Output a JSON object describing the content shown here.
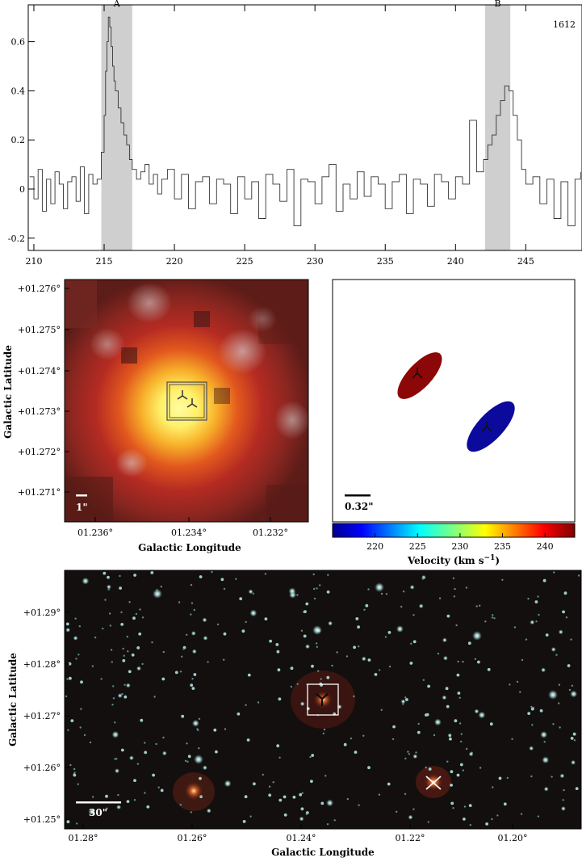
{
  "spectrum": {
    "panel_label": "1612",
    "regions": [
      {
        "label": "A",
        "x_start": 214.8,
        "x_end": 217.0
      },
      {
        "label": "B",
        "x_start": 242.1,
        "x_end": 243.9
      }
    ]
  },
  "chart_data": [
    {
      "type": "line",
      "title": "",
      "xlabel": "",
      "ylabel": "",
      "xlim": [
        209.6,
        249.0
      ],
      "ylim": [
        -0.25,
        0.75
      ],
      "x_ticks": [
        210,
        215,
        220,
        225,
        230,
        235,
        240,
        245
      ],
      "y_ticks": [
        -0.2,
        0,
        0.2,
        0.4,
        0.6
      ],
      "x_tick_labels": [
        "210",
        "215",
        "220",
        "225",
        "230",
        "235",
        "240",
        "245"
      ],
      "y_tick_labels": [
        "-0.2",
        "0",
        "0.2",
        "0.4",
        "0.6"
      ],
      "grid": false,
      "series": [
        {
          "x": [
            209.7,
            210.0,
            210.3,
            210.6,
            210.9,
            211.2,
            211.5,
            211.8,
            212.1,
            212.4,
            212.7,
            213.0,
            213.3,
            213.6,
            213.9,
            214.2,
            214.5,
            214.8,
            215.0,
            215.1,
            215.2,
            215.3,
            215.4,
            215.5,
            215.6,
            215.7,
            215.8,
            216.0,
            216.2,
            216.4,
            216.6,
            216.8,
            217.0,
            217.3,
            217.6,
            217.9,
            218.2,
            218.5,
            218.8,
            219.1,
            219.5,
            220.0,
            220.5,
            221.0,
            221.5,
            222.0,
            222.5,
            223.0,
            223.5,
            224.0,
            224.5,
            225.0,
            225.5,
            226.0,
            226.5,
            227.0,
            227.5,
            228.0,
            228.5,
            229.0,
            229.5,
            230.0,
            230.5,
            231.0,
            231.5,
            232.0,
            232.5,
            233.0,
            233.5,
            234.0,
            234.5,
            235.0,
            235.5,
            236.0,
            236.5,
            237.0,
            237.5,
            238.0,
            238.5,
            239.0,
            239.5,
            240.0,
            240.5,
            241.0,
            241.5,
            242.0,
            242.3,
            242.6,
            242.9,
            243.2,
            243.5,
            243.8,
            244.1,
            244.4,
            244.7,
            245.0,
            245.5,
            246.0,
            246.5,
            247.0,
            247.5,
            248.0,
            248.5,
            248.9
          ],
          "y": [
            0.05,
            -0.04,
            0.08,
            -0.09,
            0.04,
            -0.06,
            0.07,
            0.02,
            -0.08,
            0.03,
            0.05,
            -0.05,
            0.09,
            -0.1,
            0.06,
            0.02,
            0.04,
            0.15,
            0.3,
            0.48,
            0.6,
            0.7,
            0.66,
            0.58,
            0.5,
            0.44,
            0.4,
            0.33,
            0.27,
            0.22,
            0.18,
            0.12,
            0.08,
            0.04,
            0.07,
            0.1,
            0.02,
            0.06,
            -0.02,
            0.04,
            0.08,
            -0.04,
            0.06,
            -0.08,
            0.03,
            0.05,
            -0.06,
            0.04,
            0.02,
            -0.1,
            0.05,
            -0.04,
            0.03,
            -0.12,
            0.06,
            0.02,
            -0.05,
            0.08,
            -0.15,
            0.04,
            0.03,
            -0.06,
            0.05,
            0.1,
            -0.09,
            0.02,
            -0.04,
            0.07,
            -0.03,
            0.05,
            0.02,
            -0.08,
            0.03,
            0.06,
            -0.1,
            0.04,
            0.02,
            -0.07,
            0.06,
            0.03,
            -0.04,
            0.05,
            0.02,
            0.28,
            0.07,
            0.12,
            0.18,
            0.22,
            0.3,
            0.36,
            0.42,
            0.4,
            0.3,
            0.2,
            0.08,
            0.02,
            0.05,
            -0.06,
            0.04,
            -0.12,
            0.03,
            -0.15,
            0.04,
            0.07
          ]
        }
      ]
    },
    {
      "type": "scatter",
      "title": "",
      "xlabel": "Galactic Longitude",
      "ylabel": "Galactic Latitude",
      "x_ticks": [
        1.236,
        1.234,
        1.232
      ],
      "y_ticks": [
        1.276,
        1.275,
        1.274,
        1.273,
        1.272,
        1.271
      ],
      "x_tick_labels": [
        "01.236°",
        "01.234°",
        "01.232°"
      ],
      "y_tick_labels": [
        "+01.276°",
        "+01.275°",
        "+01.274°",
        "+01.273°",
        "+01.272°",
        "+01.271°"
      ],
      "scale_bar_label": "1\""
    },
    {
      "type": "scatter",
      "title": "",
      "xlabel": "Velocity (km s",
      "xlabel_sup": "−1",
      "xlabel_end": ")",
      "colorbar_range": [
        215.0,
        243.5
      ],
      "colorbar_ticks": [
        220,
        225,
        230,
        235,
        240
      ],
      "colorbar_tick_labels": [
        "220",
        "225",
        "230",
        "235",
        "240"
      ],
      "scale_bar_label": "0.32\"",
      "components": [
        {
          "velocity": 241,
          "color": "#8c0707"
        },
        {
          "velocity": 216,
          "color": "#0c0a9c"
        }
      ]
    },
    {
      "type": "scatter",
      "title": "",
      "xlabel": "Galactic Longitude",
      "ylabel": "Galactic Latitude",
      "x_ticks": [
        1.28,
        1.26,
        1.24,
        1.22,
        1.2
      ],
      "y_ticks": [
        1.29,
        1.28,
        1.27,
        1.26,
        1.25
      ],
      "x_tick_labels": [
        "01.28°",
        "01.26°",
        "01.24°",
        "01.22°",
        "01.20°"
      ],
      "y_tick_labels": [
        "+01.29°",
        "+01.28°",
        "+01.27°",
        "+01.26°",
        "+01.25°"
      ],
      "scale_bar_label": "30\""
    }
  ]
}
